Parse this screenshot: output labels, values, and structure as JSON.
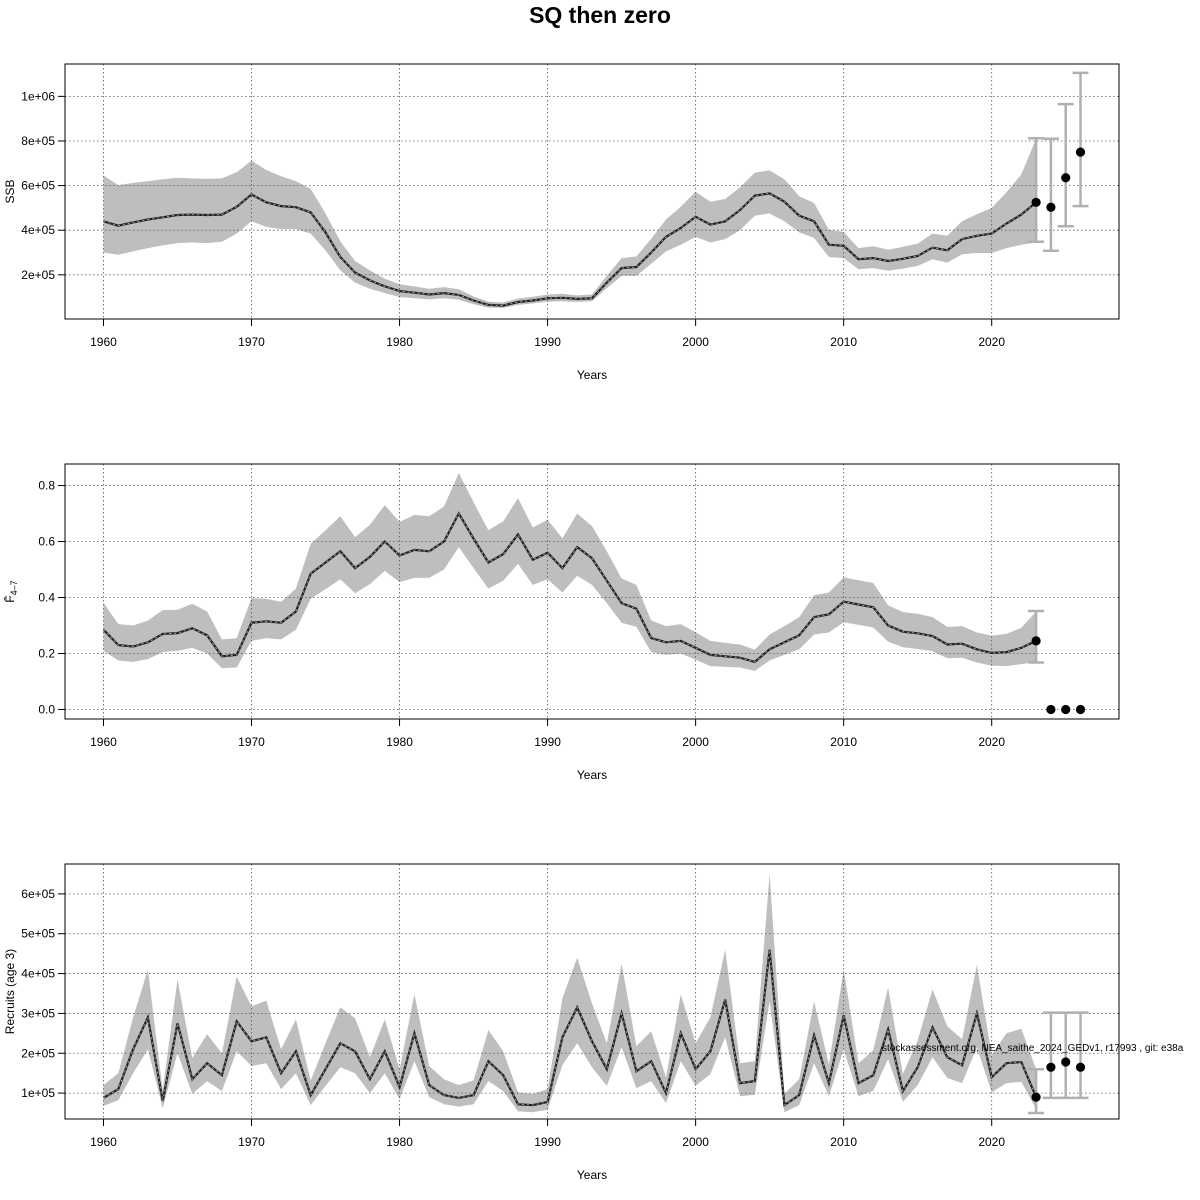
{
  "title": "SQ then zero",
  "watermark": "stockassessment.org, NEA_saithe_2024_GEDv1, r17993 , git: e38a",
  "colors": {
    "band": "#bebebe",
    "line": "#222222",
    "errorbar": "#b0b0b0",
    "point": "#000000"
  },
  "chart_data": [
    {
      "type": "line",
      "ylabel": "SSB",
      "xlabel": "Years",
      "xlim": [
        1957.4,
        2028.6
      ],
      "ylim": [
        2000,
        1145000
      ],
      "xticks": [
        1960,
        1970,
        1980,
        1990,
        2000,
        2010,
        2020
      ],
      "xtick_labels": [
        "1960",
        "1970",
        "1980",
        "1990",
        "2000",
        "2010",
        "2020"
      ],
      "yticks": [
        200000,
        400000,
        600000,
        800000,
        1000000
      ],
      "ytick_labels": [
        "2e+05",
        "4e+05",
        "6e+05",
        "8e+05",
        "1e+06"
      ],
      "grid": true,
      "x": [
        1960,
        1961,
        1962,
        1963,
        1964,
        1965,
        1966,
        1967,
        1968,
        1969,
        1970,
        1971,
        1972,
        1973,
        1974,
        1975,
        1976,
        1977,
        1978,
        1979,
        1980,
        1981,
        1982,
        1983,
        1984,
        1985,
        1986,
        1987,
        1988,
        1989,
        1990,
        1991,
        1992,
        1993,
        1994,
        1995,
        1996,
        1997,
        1998,
        1999,
        2000,
        2001,
        2002,
        2003,
        2004,
        2005,
        2006,
        2007,
        2008,
        2009,
        2010,
        2011,
        2012,
        2013,
        2014,
        2015,
        2016,
        2017,
        2018,
        2019,
        2020,
        2021,
        2022,
        2023
      ],
      "estimate": [
        440000,
        420000,
        435000,
        448000,
        458000,
        468000,
        470000,
        468000,
        470000,
        505000,
        560000,
        525000,
        508000,
        503000,
        480000,
        390000,
        280000,
        210000,
        175000,
        148000,
        127000,
        120000,
        112000,
        118000,
        110000,
        85000,
        65000,
        62000,
        78000,
        85000,
        95000,
        97000,
        92000,
        95000,
        165000,
        230000,
        235000,
        300000,
        370000,
        410000,
        460000,
        425000,
        440000,
        490000,
        555000,
        565000,
        528000,
        465000,
        440000,
        335000,
        330000,
        270000,
        275000,
        262000,
        272000,
        285000,
        322000,
        310000,
        360000,
        375000,
        385000,
        430000,
        470000,
        525000
      ],
      "lower": [
        300000,
        290000,
        305000,
        320000,
        332000,
        342000,
        345000,
        342000,
        348000,
        385000,
        440000,
        415000,
        405000,
        405000,
        385000,
        310000,
        220000,
        165000,
        138000,
        118000,
        100000,
        95000,
        90000,
        95000,
        88000,
        68000,
        53000,
        52000,
        65000,
        72000,
        80000,
        82000,
        78000,
        82000,
        140000,
        195000,
        195000,
        250000,
        305000,
        335000,
        370000,
        345000,
        360000,
        400000,
        465000,
        475000,
        440000,
        390000,
        365000,
        280000,
        275000,
        225000,
        230000,
        218000,
        228000,
        240000,
        270000,
        255000,
        292000,
        298000,
        298000,
        320000,
        335000,
        345000
      ],
      "upper": [
        645000,
        602000,
        612000,
        620000,
        628000,
        635000,
        632000,
        630000,
        632000,
        660000,
        712000,
        670000,
        642000,
        620000,
        585000,
        475000,
        350000,
        262000,
        220000,
        182000,
        158000,
        148000,
        138000,
        145000,
        135000,
        103000,
        80000,
        76000,
        94000,
        102000,
        112000,
        115000,
        108000,
        112000,
        195000,
        275000,
        282000,
        362000,
        448000,
        505000,
        572000,
        528000,
        540000,
        592000,
        658000,
        668000,
        628000,
        552000,
        522000,
        402000,
        392000,
        320000,
        328000,
        312000,
        325000,
        340000,
        385000,
        375000,
        440000,
        472000,
        500000,
        570000,
        650000,
        810000
      ],
      "forecast": {
        "x": [
          2023,
          2024,
          2025,
          2026
        ],
        "median": [
          525000,
          503000,
          635000,
          750000
        ],
        "low": [
          348000,
          308000,
          418000,
          508000
        ],
        "high": [
          812000,
          810000,
          965000,
          1105000
        ]
      }
    },
    {
      "type": "line",
      "ylabel": "F̄",
      "ylabel_sub": "4–7",
      "xlabel": "Years",
      "xlim": [
        1957.4,
        2028.6
      ],
      "ylim": [
        -0.034,
        0.877
      ],
      "xticks": [
        1960,
        1970,
        1980,
        1990,
        2000,
        2010,
        2020
      ],
      "xtick_labels": [
        "1960",
        "1970",
        "1980",
        "1990",
        "2000",
        "2010",
        "2020"
      ],
      "yticks": [
        0.0,
        0.2,
        0.4,
        0.6,
        0.8
      ],
      "ytick_labels": [
        "0.0",
        "0.2",
        "0.4",
        "0.6",
        "0.8"
      ],
      "grid": true,
      "x": [
        1960,
        1961,
        1962,
        1963,
        1964,
        1965,
        1966,
        1967,
        1968,
        1969,
        1970,
        1971,
        1972,
        1973,
        1974,
        1975,
        1976,
        1977,
        1978,
        1979,
        1980,
        1981,
        1982,
        1983,
        1984,
        1985,
        1986,
        1987,
        1988,
        1989,
        1990,
        1991,
        1992,
        1993,
        1994,
        1995,
        1996,
        1997,
        1998,
        1999,
        2000,
        2001,
        2002,
        2003,
        2004,
        2005,
        2006,
        2007,
        2008,
        2009,
        2010,
        2011,
        2012,
        2013,
        2014,
        2015,
        2016,
        2017,
        2018,
        2019,
        2020,
        2021,
        2022,
        2023
      ],
      "estimate": [
        0.285,
        0.23,
        0.225,
        0.24,
        0.27,
        0.273,
        0.29,
        0.265,
        0.19,
        0.195,
        0.31,
        0.315,
        0.31,
        0.35,
        0.485,
        0.525,
        0.565,
        0.505,
        0.545,
        0.6,
        0.55,
        0.57,
        0.565,
        0.6,
        0.7,
        0.61,
        0.525,
        0.555,
        0.625,
        0.535,
        0.56,
        0.505,
        0.58,
        0.54,
        0.46,
        0.38,
        0.36,
        0.255,
        0.24,
        0.245,
        0.22,
        0.195,
        0.19,
        0.185,
        0.17,
        0.215,
        0.24,
        0.265,
        0.33,
        0.34,
        0.385,
        0.375,
        0.365,
        0.3,
        0.278,
        0.272,
        0.262,
        0.232,
        0.235,
        0.215,
        0.202,
        0.205,
        0.22,
        0.245
      ],
      "lower": [
        0.21,
        0.175,
        0.17,
        0.18,
        0.205,
        0.21,
        0.22,
        0.2,
        0.148,
        0.15,
        0.245,
        0.255,
        0.25,
        0.285,
        0.395,
        0.43,
        0.465,
        0.415,
        0.448,
        0.495,
        0.455,
        0.47,
        0.47,
        0.5,
        0.58,
        0.505,
        0.432,
        0.46,
        0.52,
        0.445,
        0.465,
        0.418,
        0.478,
        0.445,
        0.38,
        0.31,
        0.295,
        0.205,
        0.195,
        0.2,
        0.178,
        0.155,
        0.152,
        0.15,
        0.138,
        0.175,
        0.195,
        0.215,
        0.268,
        0.275,
        0.312,
        0.302,
        0.293,
        0.242,
        0.222,
        0.216,
        0.208,
        0.183,
        0.185,
        0.168,
        0.156,
        0.155,
        0.162,
        0.17
      ],
      "upper": [
        0.382,
        0.305,
        0.3,
        0.318,
        0.355,
        0.356,
        0.378,
        0.35,
        0.25,
        0.255,
        0.398,
        0.395,
        0.385,
        0.432,
        0.592,
        0.64,
        0.69,
        0.615,
        0.66,
        0.73,
        0.67,
        0.695,
        0.69,
        0.725,
        0.845,
        0.74,
        0.64,
        0.672,
        0.755,
        0.65,
        0.678,
        0.612,
        0.7,
        0.655,
        0.565,
        0.468,
        0.445,
        0.318,
        0.298,
        0.305,
        0.276,
        0.245,
        0.238,
        0.232,
        0.214,
        0.268,
        0.298,
        0.33,
        0.408,
        0.418,
        0.472,
        0.462,
        0.452,
        0.372,
        0.348,
        0.342,
        0.33,
        0.295,
        0.298,
        0.275,
        0.264,
        0.27,
        0.292,
        0.35
      ],
      "forecast": {
        "x": [
          2023,
          2024,
          2025,
          2026
        ],
        "median": [
          0.245,
          0.0,
          0.0,
          0.0
        ],
        "low": [
          0.168,
          0.0,
          0.0,
          0.0
        ],
        "high": [
          0.352,
          0.0,
          0.0,
          0.0
        ]
      }
    },
    {
      "type": "line",
      "ylabel": "Recruits (age 3)",
      "xlabel": "Years",
      "xlim": [
        1957.4,
        2028.6
      ],
      "ylim": [
        35000,
        675000
      ],
      "xticks": [
        1960,
        1970,
        1980,
        1990,
        2000,
        2010,
        2020
      ],
      "xtick_labels": [
        "1960",
        "1970",
        "1980",
        "1990",
        "2000",
        "2010",
        "2020"
      ],
      "yticks": [
        100000,
        200000,
        300000,
        400000,
        500000,
        600000
      ],
      "ytick_labels": [
        "1e+05",
        "2e+05",
        "3e+05",
        "4e+05",
        "5e+05",
        "6e+05"
      ],
      "grid": true,
      "x": [
        1960,
        1961,
        1962,
        1963,
        1964,
        1965,
        1966,
        1967,
        1968,
        1969,
        1970,
        1971,
        1972,
        1973,
        1974,
        1975,
        1976,
        1977,
        1978,
        1979,
        1980,
        1981,
        1982,
        1983,
        1984,
        1985,
        1986,
        1987,
        1988,
        1989,
        1990,
        1991,
        1992,
        1993,
        1994,
        1995,
        1996,
        1997,
        1998,
        1999,
        2000,
        2001,
        2002,
        2003,
        2004,
        2005,
        2006,
        2007,
        2008,
        2009,
        2010,
        2011,
        2012,
        2013,
        2014,
        2015,
        2016,
        2017,
        2018,
        2019,
        2020,
        2021,
        2022,
        2023
      ],
      "estimate": [
        88000,
        110000,
        210000,
        290000,
        80000,
        275000,
        135000,
        175000,
        145000,
        280000,
        230000,
        240000,
        150000,
        205000,
        95000,
        160000,
        225000,
        205000,
        135000,
        205000,
        115000,
        250000,
        120000,
        95000,
        88000,
        95000,
        180000,
        145000,
        72000,
        70000,
        78000,
        240000,
        315000,
        230000,
        160000,
        300000,
        155000,
        180000,
        100000,
        250000,
        160000,
        205000,
        335000,
        125000,
        130000,
        460000,
        70000,
        95000,
        245000,
        125000,
        295000,
        125000,
        145000,
        260000,
        105000,
        165000,
        265000,
        190000,
        170000,
        300000,
        140000,
        175000,
        178000,
        90000
      ],
      "lower": [
        68000,
        82000,
        150000,
        210000,
        62000,
        200000,
        98000,
        130000,
        105000,
        205000,
        168000,
        175000,
        110000,
        150000,
        70000,
        118000,
        165000,
        150000,
        100000,
        150000,
        85000,
        180000,
        90000,
        72000,
        66000,
        72000,
        130000,
        105000,
        54000,
        52000,
        58000,
        170000,
        225000,
        165000,
        118000,
        215000,
        112000,
        130000,
        75000,
        180000,
        118000,
        148000,
        240000,
        92000,
        96000,
        330000,
        52000,
        70000,
        175000,
        92000,
        210000,
        92000,
        106000,
        185000,
        78000,
        120000,
        190000,
        138000,
        125000,
        215000,
        102000,
        125000,
        128000,
        60000
      ],
      "upper": [
        120000,
        150000,
        290000,
        410000,
        108000,
        385000,
        188000,
        248000,
        200000,
        392000,
        318000,
        332000,
        210000,
        285000,
        132000,
        225000,
        315000,
        288000,
        190000,
        285000,
        160000,
        348000,
        168000,
        135000,
        120000,
        132000,
        258000,
        205000,
        102000,
        98000,
        110000,
        338000,
        440000,
        325000,
        225000,
        425000,
        218000,
        255000,
        140000,
        348000,
        225000,
        290000,
        460000,
        175000,
        180000,
        650000,
        98000,
        135000,
        330000,
        172000,
        410000,
        175000,
        208000,
        365000,
        148000,
        232000,
        360000,
        268000,
        235000,
        422000,
        195000,
        250000,
        262000,
        160000
      ],
      "forecast": {
        "x": [
          2023,
          2024,
          2025,
          2026
        ],
        "median": [
          90000,
          165000,
          178000,
          165000
        ],
        "low": [
          50000,
          88000,
          88000,
          88000
        ],
        "high": [
          160000,
          302000,
          302000,
          302000
        ]
      }
    }
  ]
}
